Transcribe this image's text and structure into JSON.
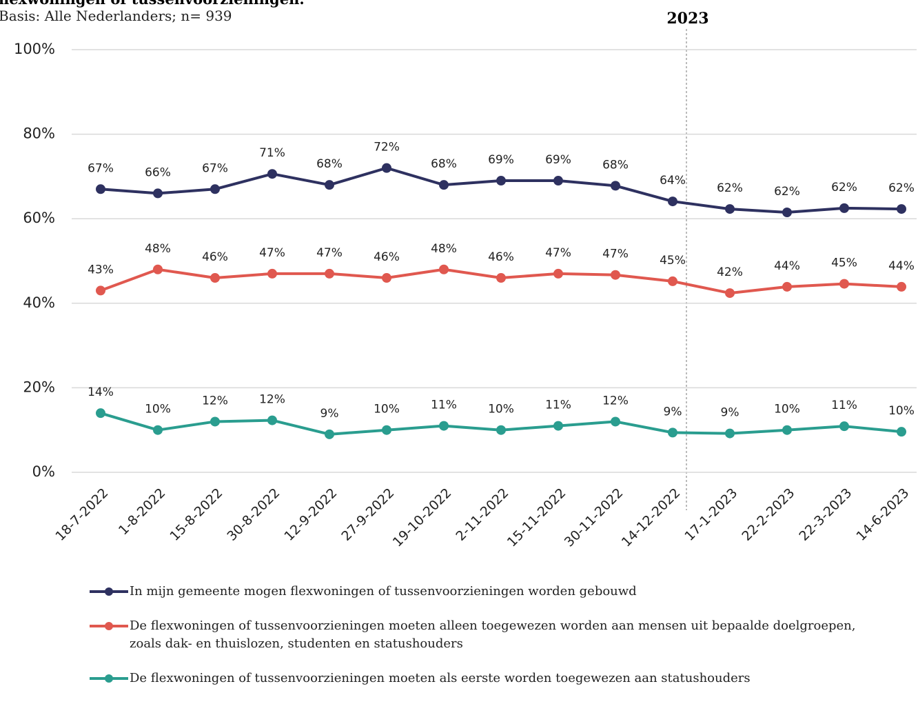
{
  "chart_data": {
    "type": "line",
    "title": "flexwoningen of tussenvoorzieningen.",
    "subtitle": "Basis: Alle Nederlanders; n= 939",
    "annotation": "2023",
    "categories": [
      "18-7-2022",
      "1-8-2022",
      "15-8-2022",
      "30-8-2022",
      "12-9-2022",
      "27-9-2022",
      "19-10-2022",
      "2-11-2022",
      "15-11-2022",
      "30-11-2022",
      "14-12-2022",
      "17-1-2023",
      "22-2-2023",
      "22-3-2023",
      "14-6-2023"
    ],
    "series": [
      {
        "name": "In mijn gemeente mogen flexwoningen of tussenvoorzieningen worden gebouwd",
        "color": "#2e3160",
        "values": [
          67,
          66,
          67,
          70.6,
          68,
          72,
          68,
          69,
          69,
          67.8,
          64.1,
          62.3,
          61.5,
          62.5,
          62.3
        ],
        "value_labels": [
          "67%",
          "66%",
          "67%",
          "71%",
          "68%",
          "72%",
          "68%",
          "69%",
          "69%",
          "68%",
          "64%",
          "62%",
          "62%",
          "62%",
          "62%"
        ]
      },
      {
        "name": "De flexwoningen of tussenvoorzieningen moeten alleen toegewezen worden aan mensen uit bepaalde doelgroepen, zoals dak- en thuislozen, studenten en statushouders",
        "color": "#e0584f",
        "values": [
          43,
          48,
          46,
          47,
          47,
          46,
          48,
          46,
          47,
          46.7,
          45.2,
          42.4,
          43.9,
          44.6,
          43.9
        ],
        "value_labels": [
          "43%",
          "48%",
          "46%",
          "47%",
          "47%",
          "46%",
          "48%",
          "46%",
          "47%",
          "47%",
          "45%",
          "42%",
          "44%",
          "45%",
          "44%"
        ]
      },
      {
        "name": "De flexwoningen of tussenvoorzieningen moeten als eerste worden toegewezen aan statushouders",
        "color": "#2a9d8f",
        "values": [
          14,
          10,
          12,
          12.3,
          9,
          10,
          11,
          10,
          11,
          12,
          9.4,
          9.2,
          10,
          10.9,
          9.6
        ],
        "value_labels": [
          "14%",
          "10%",
          "12%",
          "12%",
          "9%",
          "10%",
          "11%",
          "10%",
          "11%",
          "12%",
          "9%",
          "9%",
          "10%",
          "11%",
          "10%"
        ]
      }
    ],
    "ylim": [
      0,
      100
    ],
    "yticks": [
      {
        "value": 0,
        "label": "0%"
      },
      {
        "value": 20,
        "label": "20%"
      },
      {
        "value": 40,
        "label": "40%"
      },
      {
        "value": 60,
        "label": "60%"
      },
      {
        "value": 80,
        "label": "80%"
      },
      {
        "value": 100,
        "label": "100%"
      }
    ],
    "grid": true
  }
}
